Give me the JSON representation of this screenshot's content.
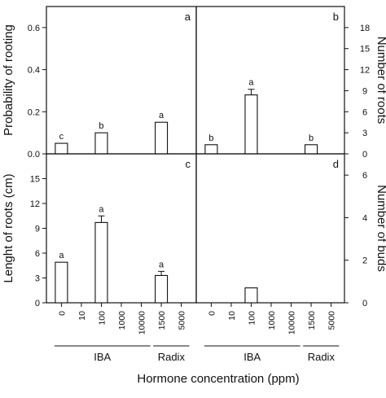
{
  "figure": {
    "x_title": "Hormone concentration (ppm)",
    "groups": [
      "IBA",
      "Radix"
    ]
  },
  "chart_data": [
    {
      "panel": "a",
      "type": "bar",
      "categories": [
        "0",
        "10",
        "100",
        "1000",
        "10000",
        "1500",
        "5000"
      ],
      "values": [
        0.05,
        0,
        0.1,
        0,
        0,
        0.15,
        0
      ],
      "errors": [
        0,
        0,
        0,
        0,
        0,
        0,
        0
      ],
      "sig_letters": [
        "c",
        "",
        "b",
        "",
        "",
        "a",
        ""
      ],
      "ylabel": "Probability of rooting",
      "ylim": [
        0,
        0.7
      ],
      "yticks": [
        0.0,
        0.2,
        0.4,
        0.6
      ],
      "ytick_labels": [
        "0.0",
        "0.2",
        "0.4",
        "0.6"
      ],
      "axis_side": "left"
    },
    {
      "panel": "b",
      "type": "bar",
      "categories": [
        "0",
        "10",
        "100",
        "1000",
        "10000",
        "1500",
        "5000"
      ],
      "values": [
        1.3,
        0,
        8.4,
        0,
        0,
        1.3,
        0
      ],
      "errors": [
        0,
        0,
        0.8,
        0,
        0,
        0,
        0
      ],
      "sig_letters": [
        "b",
        "",
        "a",
        "",
        "",
        "b",
        ""
      ],
      "ylabel": "Number of roots",
      "ylim": [
        0,
        21
      ],
      "yticks": [
        0,
        3,
        6,
        9,
        12,
        15,
        18
      ],
      "ytick_labels": [
        "0",
        "3",
        "6",
        "9",
        "12",
        "15",
        "18"
      ],
      "axis_side": "right"
    },
    {
      "panel": "c",
      "type": "bar",
      "categories": [
        "0",
        "10",
        "100",
        "1000",
        "10000",
        "1500",
        "5000"
      ],
      "values": [
        4.9,
        0,
        9.7,
        0,
        0,
        3.3,
        0
      ],
      "errors": [
        0,
        0,
        0.8,
        0,
        0,
        0.5,
        0
      ],
      "sig_letters": [
        "a",
        "",
        "a",
        "",
        "",
        "a",
        ""
      ],
      "ylabel": "Lenght of roots (cm)",
      "ylim": [
        0,
        18
      ],
      "yticks": [
        0,
        3,
        6,
        9,
        12,
        15
      ],
      "ytick_labels": [
        "0",
        "3",
        "6",
        "9",
        "12",
        "15"
      ],
      "axis_side": "left"
    },
    {
      "panel": "d",
      "type": "bar",
      "categories": [
        "0",
        "10",
        "100",
        "1000",
        "10000",
        "1500",
        "5000"
      ],
      "values": [
        0,
        0,
        0.7,
        0,
        0,
        0,
        0
      ],
      "errors": [
        0,
        0,
        0,
        0,
        0,
        0,
        0
      ],
      "sig_letters": [
        "",
        "",
        "",
        "",
        "",
        "",
        ""
      ],
      "ylabel": "Number of buds",
      "ylim": [
        0,
        7
      ],
      "yticks": [
        0,
        2,
        4,
        6
      ],
      "ytick_labels": [
        "0",
        "2",
        "4",
        "6"
      ],
      "axis_side": "right"
    }
  ]
}
